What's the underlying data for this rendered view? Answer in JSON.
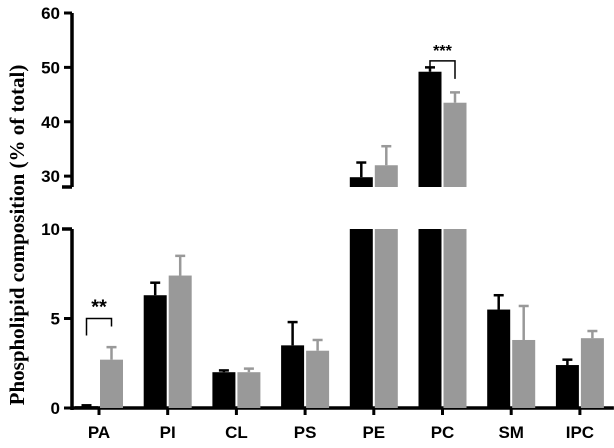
{
  "chart_data": {
    "type": "bar",
    "ylabel": "Phospholipid composition (% of total)",
    "y_axis_break": {
      "lower_range": [
        0,
        10
      ],
      "upper_range": [
        28,
        60
      ]
    },
    "yticks_lower": [
      0,
      5,
      10
    ],
    "yticks_upper": [
      30,
      40,
      50,
      60
    ],
    "categories": [
      "PA",
      "PI",
      "CL",
      "PS",
      "PE",
      "PC",
      "SM",
      "IPC"
    ],
    "series": [
      {
        "color": "#000000",
        "values": [
          0.1,
          6.3,
          2.0,
          3.5,
          29.8,
          49.2,
          5.5,
          2.4
        ],
        "errors": [
          0.05,
          0.7,
          0.1,
          1.3,
          2.7,
          0.8,
          0.8,
          0.3
        ]
      },
      {
        "color": "#999999",
        "values": [
          2.7,
          7.4,
          2.0,
          3.2,
          32.0,
          43.5,
          3.8,
          3.9
        ],
        "errors": [
          0.7,
          1.1,
          0.2,
          0.6,
          3.5,
          1.9,
          1.9,
          0.4
        ]
      }
    ],
    "significance": [
      {
        "category": "PA",
        "label": "**",
        "y": 5.0
      },
      {
        "category": "PC",
        "label": "***",
        "y": 51.2
      }
    ],
    "grid": false,
    "legend": "none"
  }
}
